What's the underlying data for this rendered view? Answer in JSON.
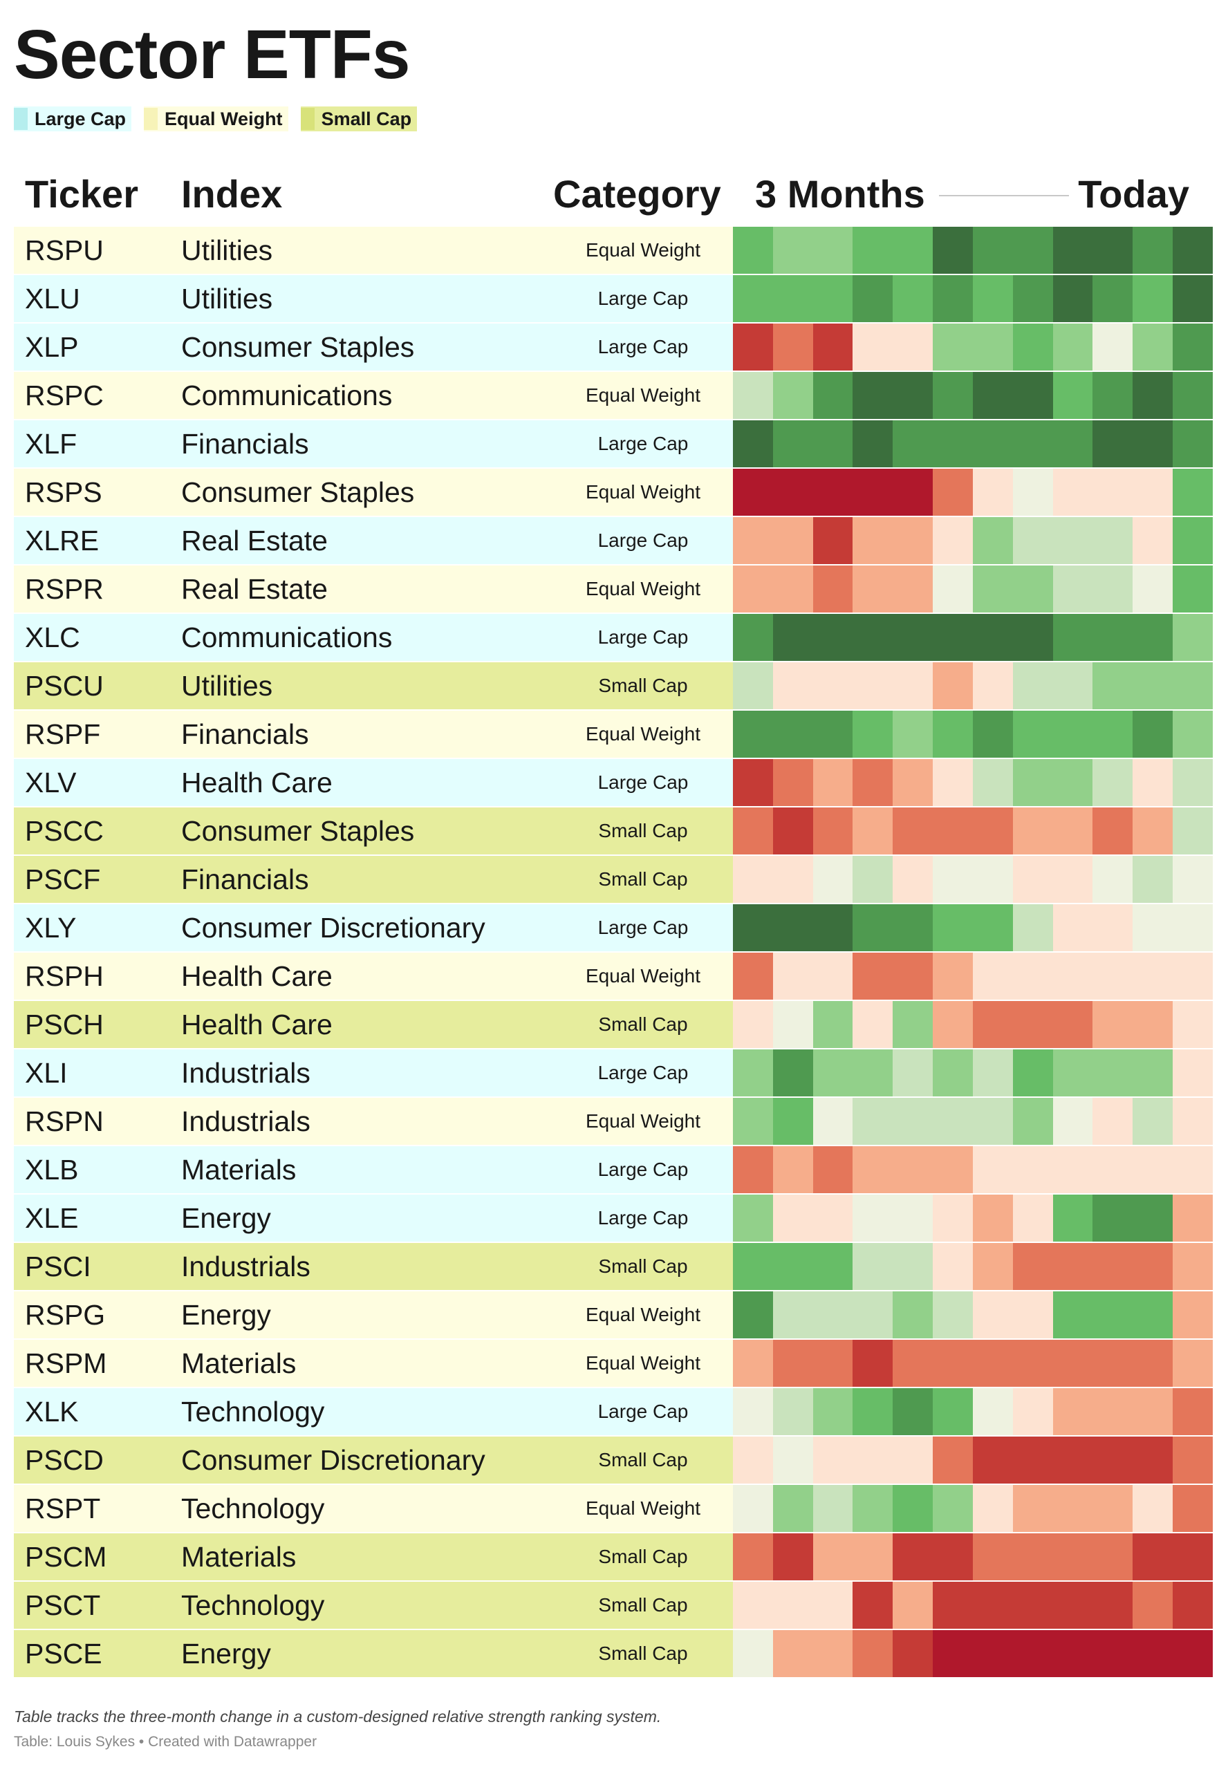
{
  "title": "Sector ETFs",
  "legend": [
    {
      "label": "Large Cap",
      "color": "#b5eeee",
      "bg": "#e3fefe"
    },
    {
      "label": "Equal Weight",
      "color": "#f7f3b8",
      "bg": "#fefde0"
    },
    {
      "label": "Small Cap",
      "color": "#d8e27a",
      "bg": "#e6ed9d"
    }
  ],
  "headers": {
    "ticker": "Ticker",
    "index": "Index",
    "category": "Category",
    "range_start": "3 Months",
    "range_end": "Today"
  },
  "category_colors": {
    "Large Cap": "#e3fefe",
    "Equal Weight": "#fefde0",
    "Small Cap": "#e6ed9d"
  },
  "footnote": "Table tracks the three-month change in a custom-designed relative strength ranking system.",
  "credit": "Table: Louis Sykes • Created with Datawrapper",
  "chart_data": {
    "type": "heatmap",
    "scale": "-5 strong relative weakness (red) to +5 strong relative strength (green)",
    "columns": 12,
    "rows": [
      {
        "ticker": "RSPU",
        "index": "Utilities",
        "category": "Equal Weight",
        "values": [
          3,
          2,
          2,
          3,
          3,
          5,
          4,
          4,
          5,
          5,
          4,
          5
        ]
      },
      {
        "ticker": "XLU",
        "index": "Utilities",
        "category": "Large Cap",
        "values": [
          3,
          3,
          3,
          4,
          3,
          4,
          3,
          4,
          5,
          4,
          3,
          5
        ]
      },
      {
        "ticker": "XLP",
        "index": "Consumer Staples",
        "category": "Large Cap",
        "values": [
          -4,
          -3,
          -4,
          -1,
          -1,
          2,
          2,
          3,
          2,
          0,
          2,
          4
        ]
      },
      {
        "ticker": "RSPC",
        "index": "Communications",
        "category": "Equal Weight",
        "values": [
          1,
          2,
          4,
          5,
          5,
          4,
          5,
          5,
          3,
          4,
          5,
          4
        ]
      },
      {
        "ticker": "XLF",
        "index": "Financials",
        "category": "Large Cap",
        "values": [
          5,
          4,
          4,
          5,
          4,
          4,
          4,
          4,
          4,
          5,
          5,
          4
        ]
      },
      {
        "ticker": "RSPS",
        "index": "Consumer Staples",
        "category": "Equal Weight",
        "values": [
          -5,
          -5,
          -5,
          -5,
          -5,
          -3,
          -1,
          0,
          -1,
          -1,
          -1,
          3
        ]
      },
      {
        "ticker": "XLRE",
        "index": "Real Estate",
        "category": "Large Cap",
        "values": [
          -2,
          -2,
          -4,
          -2,
          -2,
          -1,
          2,
          1,
          1,
          1,
          -1,
          3
        ]
      },
      {
        "ticker": "RSPR",
        "index": "Real Estate",
        "category": "Equal Weight",
        "values": [
          -2,
          -2,
          -3,
          -2,
          -2,
          0,
          2,
          2,
          1,
          1,
          0,
          3
        ]
      },
      {
        "ticker": "XLC",
        "index": "Communications",
        "category": "Large Cap",
        "values": [
          4,
          5,
          5,
          5,
          5,
          5,
          5,
          5,
          4,
          4,
          4,
          2
        ]
      },
      {
        "ticker": "PSCU",
        "index": "Utilities",
        "category": "Small Cap",
        "values": [
          1,
          -1,
          -1,
          -1,
          -1,
          -2,
          -1,
          1,
          1,
          2,
          2,
          2
        ]
      },
      {
        "ticker": "RSPF",
        "index": "Financials",
        "category": "Equal Weight",
        "values": [
          4,
          4,
          4,
          3,
          2,
          3,
          4,
          3,
          3,
          3,
          4,
          2
        ]
      },
      {
        "ticker": "XLV",
        "index": "Health Care",
        "category": "Large Cap",
        "values": [
          -4,
          -3,
          -2,
          -3,
          -2,
          -1,
          1,
          2,
          2,
          1,
          -1,
          1
        ]
      },
      {
        "ticker": "PSCC",
        "index": "Consumer Staples",
        "category": "Small Cap",
        "values": [
          -3,
          -4,
          -3,
          -2,
          -3,
          -3,
          -3,
          -2,
          -2,
          -3,
          -2,
          1
        ]
      },
      {
        "ticker": "PSCF",
        "index": "Financials",
        "category": "Small Cap",
        "values": [
          -1,
          -1,
          0,
          1,
          -1,
          0,
          0,
          -1,
          -1,
          0,
          1,
          0
        ]
      },
      {
        "ticker": "XLY",
        "index": "Consumer Discretionary",
        "category": "Large Cap",
        "values": [
          5,
          5,
          5,
          4,
          4,
          3,
          3,
          1,
          -1,
          -1,
          0,
          0
        ]
      },
      {
        "ticker": "RSPH",
        "index": "Health Care",
        "category": "Equal Weight",
        "values": [
          -3,
          -1,
          -1,
          -3,
          -3,
          -2,
          -1,
          -1,
          -1,
          -1,
          -1,
          -1
        ]
      },
      {
        "ticker": "PSCH",
        "index": "Health Care",
        "category": "Small Cap",
        "values": [
          -1,
          0,
          2,
          -1,
          2,
          -2,
          -3,
          -3,
          -3,
          -2,
          -2,
          -1
        ]
      },
      {
        "ticker": "XLI",
        "index": "Industrials",
        "category": "Large Cap",
        "values": [
          2,
          4,
          2,
          2,
          1,
          2,
          1,
          3,
          2,
          2,
          2,
          -1
        ]
      },
      {
        "ticker": "RSPN",
        "index": "Industrials",
        "category": "Equal Weight",
        "values": [
          2,
          3,
          0,
          1,
          1,
          1,
          1,
          2,
          0,
          -1,
          1,
          -1
        ]
      },
      {
        "ticker": "XLB",
        "index": "Materials",
        "category": "Large Cap",
        "values": [
          -3,
          -2,
          -3,
          -2,
          -2,
          -2,
          -1,
          -1,
          -1,
          -1,
          -1,
          -1
        ]
      },
      {
        "ticker": "XLE",
        "index": "Energy",
        "category": "Large Cap",
        "values": [
          2,
          -1,
          -1,
          0,
          0,
          -1,
          -2,
          -1,
          3,
          4,
          4,
          -2
        ]
      },
      {
        "ticker": "PSCI",
        "index": "Industrials",
        "category": "Small Cap",
        "values": [
          3,
          3,
          3,
          1,
          1,
          -1,
          -2,
          -3,
          -3,
          -3,
          -3,
          -2
        ]
      },
      {
        "ticker": "RSPG",
        "index": "Energy",
        "category": "Equal Weight",
        "values": [
          4,
          1,
          1,
          1,
          2,
          1,
          -1,
          -1,
          3,
          3,
          3,
          -2
        ]
      },
      {
        "ticker": "RSPM",
        "index": "Materials",
        "category": "Equal Weight",
        "values": [
          -2,
          -3,
          -3,
          -4,
          -3,
          -3,
          -3,
          -3,
          -3,
          -3,
          -3,
          -2
        ]
      },
      {
        "ticker": "XLK",
        "index": "Technology",
        "category": "Large Cap",
        "values": [
          0,
          1,
          2,
          3,
          4,
          3,
          0,
          -1,
          -2,
          -2,
          -2,
          -3
        ]
      },
      {
        "ticker": "PSCD",
        "index": "Consumer Discretionary",
        "category": "Small Cap",
        "values": [
          -1,
          0,
          -1,
          -1,
          -1,
          -3,
          -4,
          -4,
          -4,
          -4,
          -4,
          -3
        ]
      },
      {
        "ticker": "RSPT",
        "index": "Technology",
        "category": "Equal Weight",
        "values": [
          0,
          2,
          1,
          2,
          3,
          2,
          -1,
          -2,
          -2,
          -2,
          -1,
          -3
        ]
      },
      {
        "ticker": "PSCM",
        "index": "Materials",
        "category": "Small Cap",
        "values": [
          -3,
          -4,
          -2,
          -2,
          -4,
          -4,
          -3,
          -3,
          -3,
          -3,
          -4,
          -4
        ]
      },
      {
        "ticker": "PSCT",
        "index": "Technology",
        "category": "Small Cap",
        "values": [
          -1,
          -1,
          -1,
          -4,
          -2,
          -4,
          -4,
          -4,
          -4,
          -4,
          -3,
          -4
        ]
      },
      {
        "ticker": "PSCE",
        "index": "Energy",
        "category": "Small Cap",
        "values": [
          0,
          -2,
          -2,
          -3,
          -4,
          -5,
          -5,
          -5,
          -5,
          -5,
          -5,
          -5
        ]
      }
    ],
    "colors": {
      "-5": "#b0182c",
      "-4": "#c53b36",
      "-3": "#e4765a",
      "-2": "#f6ad8b",
      "-1": "#fde3d2",
      "0": "#eef2e0",
      "1": "#c9e3bd",
      "2": "#92d08a",
      "3": "#67bd67",
      "4": "#4f9a50",
      "5": "#3b6f3d"
    }
  }
}
